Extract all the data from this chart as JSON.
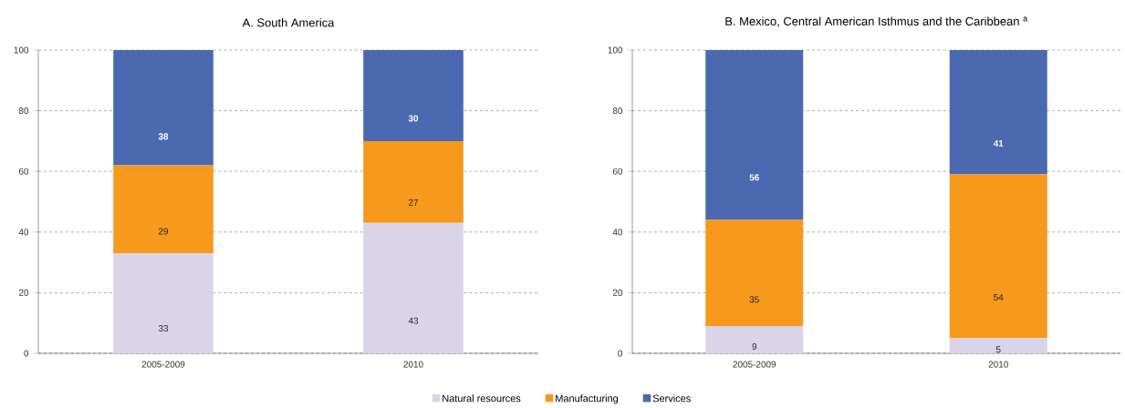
{
  "chart_data": [
    {
      "type": "bar",
      "title": "A. South America",
      "categories": [
        "2005-2009",
        "2010"
      ],
      "stacked": true,
      "ylim": [
        0,
        100
      ],
      "yticks": [
        0,
        20,
        40,
        60,
        80,
        100
      ],
      "grid": "y",
      "data_labels": true,
      "legend": "bottom",
      "series": [
        {
          "name": "Natural resources",
          "color": "#d9d4e8",
          "values": [
            33,
            43
          ]
        },
        {
          "name": "Manufacturing",
          "color": "#f7991c",
          "values": [
            29,
            27
          ]
        },
        {
          "name": "Services",
          "color": "#4a69b0",
          "values": [
            38,
            30
          ]
        }
      ]
    },
    {
      "type": "bar",
      "title": "B. Mexico, Central American Isthmus and the Caribbean $^{a}$",
      "categories": [
        "2005-2009",
        "2010"
      ],
      "stacked": true,
      "ylim": [
        0,
        100
      ],
      "yticks": [
        0,
        20,
        40,
        60,
        80,
        100
      ],
      "grid": "y",
      "data_labels": true,
      "series": [
        {
          "color": "#d9d4e8",
          "values": [
            9,
            5
          ]
        },
        {
          "color": "#f7991c",
          "values": [
            35,
            54
          ]
        },
        {
          "color": "#4a69b0",
          "values": [
            56,
            41
          ]
        }
      ]
    }
  ]
}
